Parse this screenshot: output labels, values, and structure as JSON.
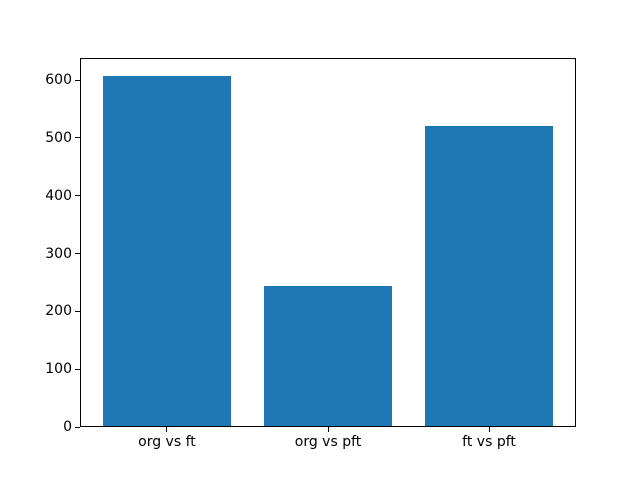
{
  "chart_data": {
    "type": "bar",
    "title": "",
    "xlabel": "",
    "ylabel": "",
    "categories": [
      "org vs ft",
      "org vs pft",
      "ft vs pft"
    ],
    "values": [
      608,
      244,
      520
    ],
    "yticks": [
      0,
      100,
      200,
      300,
      400,
      500,
      600
    ],
    "ylim": [
      0,
      638.4
    ],
    "xlim": [
      -0.54,
      2.54
    ],
    "bar_width": 0.8,
    "bar_color": "#1f77b4",
    "background_color": "#ffffff",
    "spine_color": "#000000",
    "grid": false,
    "legend": null
  }
}
